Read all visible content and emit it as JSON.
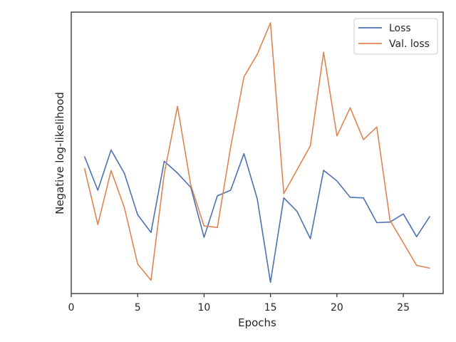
{
  "chart_data": {
    "type": "line",
    "xlabel": "Epochs",
    "ylabel": "Negative log-likelihood",
    "xlim": [
      0,
      28
    ],
    "ylim": [
      0,
      10
    ],
    "x_ticks": [
      0,
      5,
      10,
      15,
      20,
      25
    ],
    "y_ticks_visible": false,
    "grid": false,
    "legend_position": "top-right",
    "x": [
      1,
      2,
      3,
      4,
      5,
      6,
      7,
      8,
      9,
      10,
      11,
      12,
      13,
      14,
      15,
      16,
      17,
      18,
      19,
      20,
      21,
      22,
      23,
      24,
      25,
      26,
      27
    ],
    "series": [
      {
        "name": "Loss",
        "color": "#4c72b0",
        "values": [
          4.87,
          3.67,
          5.1,
          4.27,
          2.8,
          2.17,
          4.7,
          4.28,
          3.77,
          2.0,
          3.47,
          3.67,
          4.97,
          3.37,
          0.4,
          3.4,
          2.92,
          1.95,
          4.38,
          4.0,
          3.42,
          3.4,
          2.52,
          2.54,
          2.83,
          2.02,
          2.75
        ]
      },
      {
        "name": "Val. loss",
        "color": "#dd8452",
        "values": [
          4.45,
          2.45,
          4.37,
          3.05,
          1.05,
          0.47,
          4.25,
          6.65,
          3.85,
          2.4,
          2.35,
          5.2,
          7.7,
          8.5,
          9.62,
          3.55,
          4.4,
          5.25,
          8.57,
          5.6,
          6.6,
          5.47,
          5.92,
          2.6,
          1.8,
          1.0,
          0.9
        ]
      }
    ]
  }
}
